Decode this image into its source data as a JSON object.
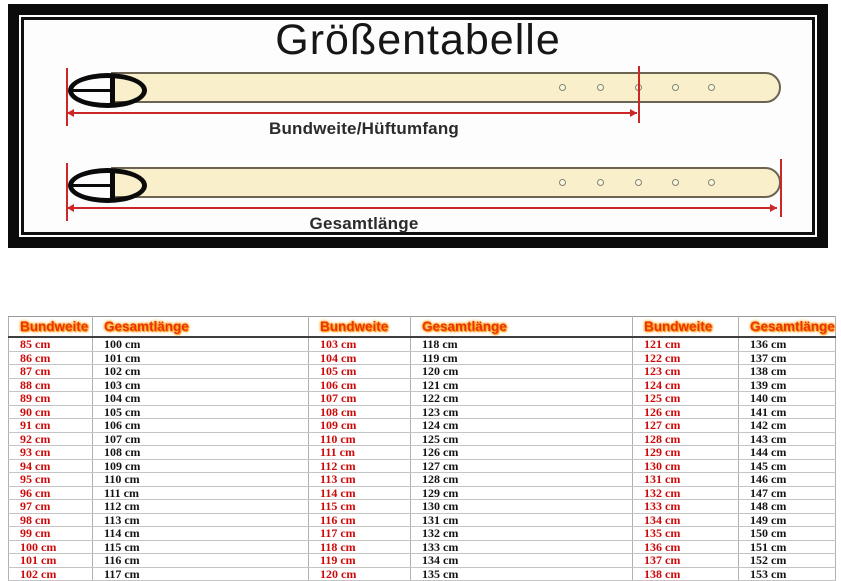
{
  "diagram": {
    "title": "Größentabelle",
    "waist_label": "Bundweite/Hüftumfang",
    "length_label": "Gesamtlänge",
    "colors": {
      "belt_fill": "#f9efca",
      "belt_outline": "#6b6453",
      "measure_red": "#cb2727",
      "frame_black": "#0b0b0b"
    }
  },
  "table": {
    "headers": {
      "bundweite": "Bundweite",
      "gesamtlaenge": "Gesamtlänge"
    },
    "colors": {
      "header_text": "#e8330f",
      "header_glow": "#ff9d00",
      "bundweite_text": "#cc0a0a",
      "gesamtlaenge_text": "#141414"
    },
    "groups": [
      {
        "rows": [
          [
            "85 cm",
            "100 cm"
          ],
          [
            "86 cm",
            "101 cm"
          ],
          [
            "87 cm",
            "102 cm"
          ],
          [
            "88 cm",
            "103 cm"
          ],
          [
            "89 cm",
            "104 cm"
          ],
          [
            "90 cm",
            "105 cm"
          ],
          [
            "91 cm",
            "106 cm"
          ],
          [
            "92 cm",
            "107 cm"
          ],
          [
            "93 cm",
            "108 cm"
          ],
          [
            "94 cm",
            "109 cm"
          ],
          [
            "95 cm",
            "110 cm"
          ],
          [
            "96 cm",
            "111 cm"
          ],
          [
            "97 cm",
            "112 cm"
          ],
          [
            "98 cm",
            "113 cm"
          ],
          [
            "99 cm",
            "114 cm"
          ],
          [
            "100 cm",
            "115 cm"
          ],
          [
            "101 cm",
            "116 cm"
          ],
          [
            "102 cm",
            "117 cm"
          ]
        ]
      },
      {
        "rows": [
          [
            "103 cm",
            "118 cm"
          ],
          [
            "104 cm",
            "119 cm"
          ],
          [
            "105 cm",
            "120 cm"
          ],
          [
            "106 cm",
            "121 cm"
          ],
          [
            "107 cm",
            "122 cm"
          ],
          [
            "108 cm",
            "123 cm"
          ],
          [
            "109 cm",
            "124 cm"
          ],
          [
            "110 cm",
            "125 cm"
          ],
          [
            "111 cm",
            "126 cm"
          ],
          [
            "112 cm",
            "127 cm"
          ],
          [
            "113 cm",
            "128 cm"
          ],
          [
            "114 cm",
            "129 cm"
          ],
          [
            "115 cm",
            "130 cm"
          ],
          [
            "116 cm",
            "131 cm"
          ],
          [
            "117 cm",
            "132 cm"
          ],
          [
            "118 cm",
            "133 cm"
          ],
          [
            "119 cm",
            "134 cm"
          ],
          [
            "120 cm",
            "135 cm"
          ]
        ]
      },
      {
        "rows": [
          [
            "121 cm",
            "136 cm"
          ],
          [
            "122 cm",
            "137 cm"
          ],
          [
            "123 cm",
            "138 cm"
          ],
          [
            "124 cm",
            "139 cm"
          ],
          [
            "125 cm",
            "140 cm"
          ],
          [
            "126 cm",
            "141 cm"
          ],
          [
            "127 cm",
            "142 cm"
          ],
          [
            "128 cm",
            "143 cm"
          ],
          [
            "129 cm",
            "144 cm"
          ],
          [
            "130 cm",
            "145 cm"
          ],
          [
            "131 cm",
            "146 cm"
          ],
          [
            "132 cm",
            "147 cm"
          ],
          [
            "133 cm",
            "148 cm"
          ],
          [
            "134 cm",
            "149 cm"
          ],
          [
            "135 cm",
            "150 cm"
          ],
          [
            "136 cm",
            "151 cm"
          ],
          [
            "137 cm",
            "152 cm"
          ],
          [
            "138 cm",
            "153 cm"
          ]
        ]
      }
    ]
  }
}
